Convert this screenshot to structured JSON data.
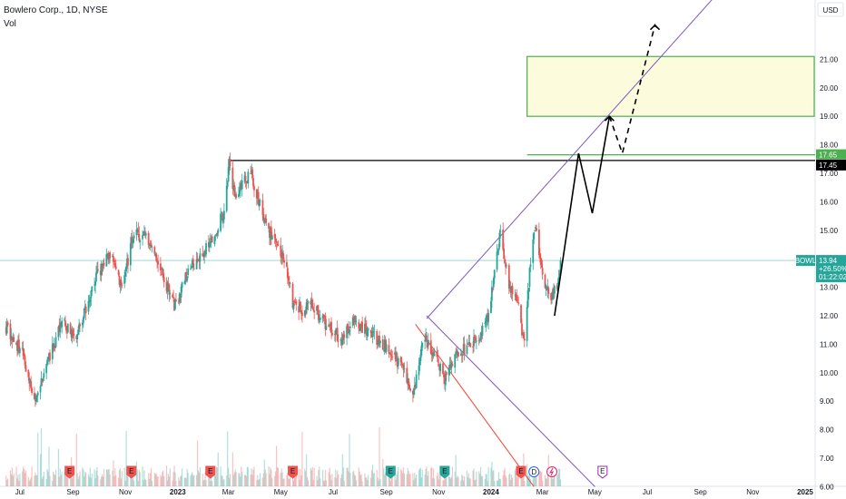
{
  "header": {
    "title": "Bowlero Corp., 1D, NYSE",
    "volume_label": "Vol"
  },
  "price_axis": {
    "currency": "USD",
    "labels": [
      "21.00",
      "20.00",
      "19.00",
      "18.00",
      "17.00",
      "16.00",
      "15.00",
      "14.00",
      "13.00",
      "12.00",
      "11.00",
      "10.00",
      "9.00",
      "8.00",
      "7.00",
      "6.00"
    ]
  },
  "time_axis": {
    "labels": [
      "Jul",
      "Sep",
      "Nov",
      "2023",
      "Mar",
      "May",
      "Jul",
      "Sep",
      "Nov",
      "2024",
      "Mar",
      "May",
      "Jul",
      "Sep",
      "Nov",
      "2025"
    ]
  },
  "current_price": {
    "ticker": "BOWL",
    "price": "13.94",
    "change": "+26.50%",
    "countdown": "01:22:02",
    "color": "#26a69a"
  },
  "level_badges": [
    {
      "label": "17.65",
      "color": "#4caf50"
    },
    {
      "label": "17.45",
      "color": "#000000"
    }
  ],
  "event_markers": {
    "earnings_letter": "E",
    "dividend_letter": "D",
    "split_icon": "lightning-icon",
    "earnings_past_color": "#ef5350",
    "earnings_future_color": "#9c27b0"
  },
  "colors": {
    "up": "#26a69a",
    "down": "#ef5350",
    "channel": "#7e57c2",
    "downtrend": "#f44336",
    "target_zone_fill": "#fcfbdc",
    "target_zone_border": "#4caf50",
    "projection": "#000000"
  },
  "chart_data": {
    "type": "candlestick",
    "symbol": "BOWL",
    "interval": "1D",
    "exchange": "NYSE",
    "y_range": [
      6.0,
      22.4
    ],
    "x_range": [
      "2022-06-10",
      "2025-01-10"
    ],
    "price_path": [
      [
        "2022-06-15",
        11.6
      ],
      [
        "2022-07-05",
        10.6
      ],
      [
        "2022-07-18",
        9.0
      ],
      [
        "2022-08-02",
        10.4
      ],
      [
        "2022-08-20",
        11.8
      ],
      [
        "2022-09-05",
        11.2
      ],
      [
        "2022-09-25",
        13.2
      ],
      [
        "2022-10-15",
        14.2
      ],
      [
        "2022-10-28",
        13.0
      ],
      [
        "2022-11-10",
        14.8
      ],
      [
        "2022-11-25",
        14.9
      ],
      [
        "2022-12-15",
        13.4
      ],
      [
        "2022-12-28",
        12.3
      ],
      [
        "2023-01-12",
        13.5
      ],
      [
        "2023-01-28",
        14.2
      ],
      [
        "2023-02-10",
        14.6
      ],
      [
        "2023-02-25",
        15.8
      ],
      [
        "2023-03-02",
        17.3
      ],
      [
        "2023-03-10",
        16.0
      ],
      [
        "2023-03-20",
        16.8
      ],
      [
        "2023-03-27",
        17.0
      ],
      [
        "2023-04-05",
        16.0
      ],
      [
        "2023-04-20",
        14.8
      ],
      [
        "2023-05-05",
        14.0
      ],
      [
        "2023-05-15",
        12.5
      ],
      [
        "2023-05-25",
        12.2
      ],
      [
        "2023-06-05",
        12.4
      ],
      [
        "2023-06-20",
        11.8
      ],
      [
        "2023-07-10",
        11.2
      ],
      [
        "2023-07-25",
        11.8
      ],
      [
        "2023-08-05",
        11.6
      ],
      [
        "2023-08-20",
        11.2
      ],
      [
        "2023-09-05",
        10.8
      ],
      [
        "2023-09-18",
        10.2
      ],
      [
        "2023-10-03",
        9.3
      ],
      [
        "2023-10-15",
        11.2
      ],
      [
        "2023-10-28",
        10.6
      ],
      [
        "2023-11-08",
        9.8
      ],
      [
        "2023-11-20",
        10.6
      ],
      [
        "2023-12-05",
        10.9
      ],
      [
        "2023-12-18",
        11.3
      ],
      [
        "2023-12-28",
        11.9
      ],
      [
        "2024-01-05",
        13.5
      ],
      [
        "2024-01-12",
        14.9
      ],
      [
        "2024-01-22",
        13.0
      ],
      [
        "2024-02-01",
        12.4
      ],
      [
        "2024-02-08",
        11.0
      ],
      [
        "2024-02-15",
        13.5
      ],
      [
        "2024-02-22",
        15.2
      ],
      [
        "2024-03-02",
        13.2
      ],
      [
        "2024-03-10",
        12.7
      ],
      [
        "2024-03-18",
        13.0
      ],
      [
        "2024-03-22",
        13.94
      ]
    ],
    "horizontal_levels": [
      {
        "price": 17.45,
        "from": "2023-03-01",
        "color": "#000000"
      },
      {
        "price": 17.65,
        "from": "2024-02-12",
        "color": "#4caf50"
      }
    ],
    "target_zone": {
      "price_low": 19.0,
      "price_high": 21.1,
      "from": "2024-02-12"
    },
    "channel_line": {
      "points": [
        [
          "2023-10-18",
          11.9
        ],
        [
          "2024-11-10",
          25.0
        ]
      ],
      "color": "#7e57c2"
    },
    "downtrend_lines": [
      {
        "points": [
          [
            "2023-10-18",
            12.0
          ],
          [
            "2024-05-01",
            6.0
          ]
        ],
        "color": "#7e57c2"
      },
      {
        "points": [
          [
            "2023-10-05",
            11.7
          ],
          [
            "2024-02-20",
            6.0
          ]
        ],
        "color": "#f44336"
      }
    ],
    "projection_path": [
      [
        "2024-03-15",
        12.0
      ],
      [
        "2024-04-12",
        17.7
      ],
      [
        "2024-04-28",
        15.6
      ],
      [
        "2024-05-18",
        19.0
      ]
    ],
    "projection_path_dashed": [
      [
        "2024-05-18",
        19.0
      ],
      [
        "2024-06-02",
        17.7
      ],
      [
        "2024-07-10",
        22.2
      ],
      [
        "2024-07-16",
        22.0
      ]
    ],
    "event_markers": [
      {
        "date": "2022-08-28",
        "kind": "earnings"
      },
      {
        "date": "2022-11-08",
        "kind": "earnings"
      },
      {
        "date": "2023-02-08",
        "kind": "earnings"
      },
      {
        "date": "2023-05-15",
        "kind": "earnings"
      },
      {
        "date": "2023-09-06",
        "kind": "earnings-beat"
      },
      {
        "date": "2023-11-08",
        "kind": "earnings-beat"
      },
      {
        "date": "2024-02-05",
        "kind": "earnings"
      },
      {
        "date": "2024-02-20",
        "kind": "dividend"
      },
      {
        "date": "2024-03-12",
        "kind": "split"
      },
      {
        "date": "2024-05-10",
        "kind": "earnings-upcoming"
      }
    ]
  }
}
